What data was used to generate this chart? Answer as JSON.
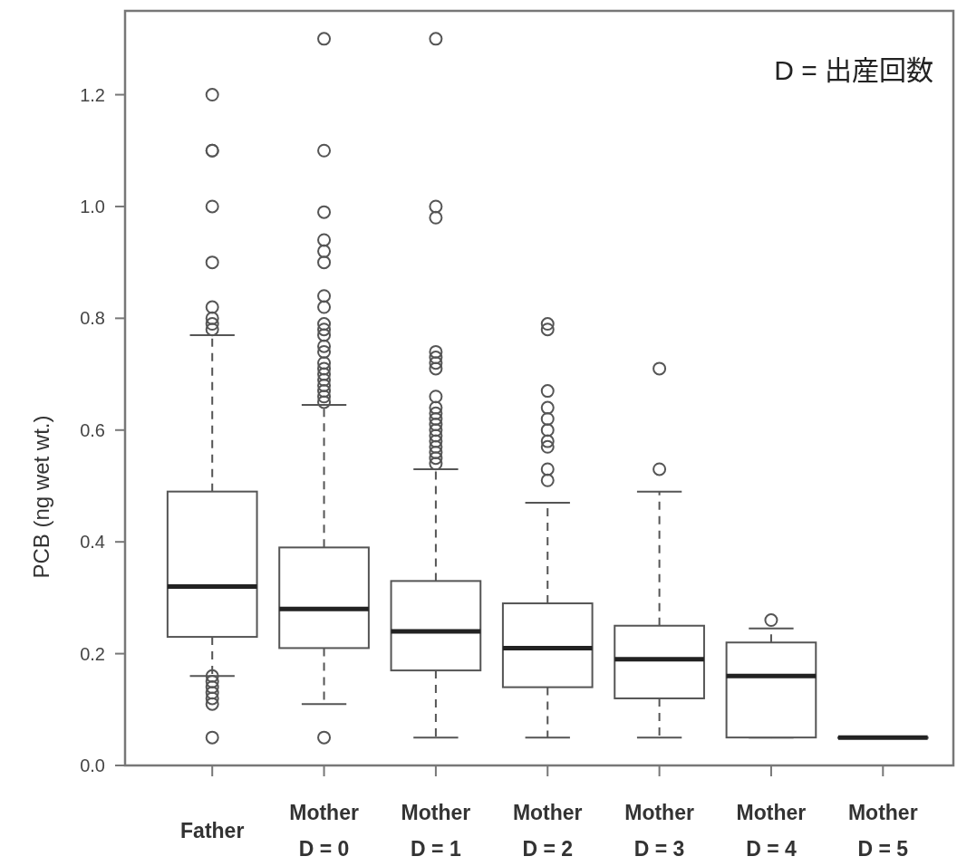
{
  "chart_data": {
    "type": "box",
    "ylabel": "PCB (ng wet wt.)",
    "annotations": [
      "D = 出産回数"
    ],
    "categories": [
      "Father",
      "Mother D = 0",
      "Mother D = 1",
      "Mother D = 2",
      "Mother D = 3",
      "Mother D = 4",
      "Mother D = 5"
    ],
    "ylim": [
      0,
      1.35
    ],
    "yticks": [
      {
        "value": 0,
        "label": "0.0"
      },
      0.2,
      0.4,
      0.6,
      0.8,
      {
        "value": 1,
        "label": "1.0"
      },
      1.2
    ],
    "boxes": [
      {
        "low": 0.16,
        "q1": 0.23,
        "median": 0.32,
        "q3": 0.49,
        "high": 0.77,
        "outliers": [
          1.2,
          1.1,
          1.1,
          1.0,
          0.9,
          0.82,
          0.8,
          0.79,
          0.78,
          0.16,
          0.15,
          0.14,
          0.13,
          0.12,
          0.11,
          0.05
        ]
      },
      {
        "low": 0.11,
        "q1": 0.21,
        "median": 0.28,
        "q3": 0.39,
        "high": 0.645,
        "outliers": [
          1.3,
          1.1,
          0.99,
          0.94,
          0.92,
          0.9,
          0.84,
          0.82,
          0.79,
          0.78,
          0.77,
          0.75,
          0.74,
          0.72,
          0.71,
          0.7,
          0.69,
          0.68,
          0.67,
          0.66,
          0.65,
          0.05
        ]
      },
      {
        "low": 0.05,
        "q1": 0.17,
        "median": 0.24,
        "q3": 0.33,
        "high": 0.53,
        "outliers": [
          1.3,
          1.0,
          0.98,
          0.74,
          0.73,
          0.72,
          0.71,
          0.66,
          0.64,
          0.63,
          0.62,
          0.61,
          0.6,
          0.59,
          0.58,
          0.57,
          0.56,
          0.55,
          0.54
        ]
      },
      {
        "low": 0.05,
        "q1": 0.14,
        "median": 0.21,
        "q3": 0.29,
        "high": 0.47,
        "outliers": [
          0.79,
          0.78,
          0.67,
          0.64,
          0.62,
          0.6,
          0.58,
          0.57,
          0.53,
          0.51
        ]
      },
      {
        "low": 0.05,
        "q1": 0.12,
        "median": 0.19,
        "q3": 0.25,
        "high": 0.49,
        "outliers": [
          0.71,
          0.53
        ]
      },
      {
        "low": 0.05,
        "q1": 0.05,
        "median": 0.16,
        "q3": 0.22,
        "high": 0.245,
        "outliers": [
          0.26
        ]
      },
      {
        "low": 0.05,
        "q1": 0.05,
        "median": 0.05,
        "q3": 0.05,
        "high": 0.05
      }
    ]
  }
}
